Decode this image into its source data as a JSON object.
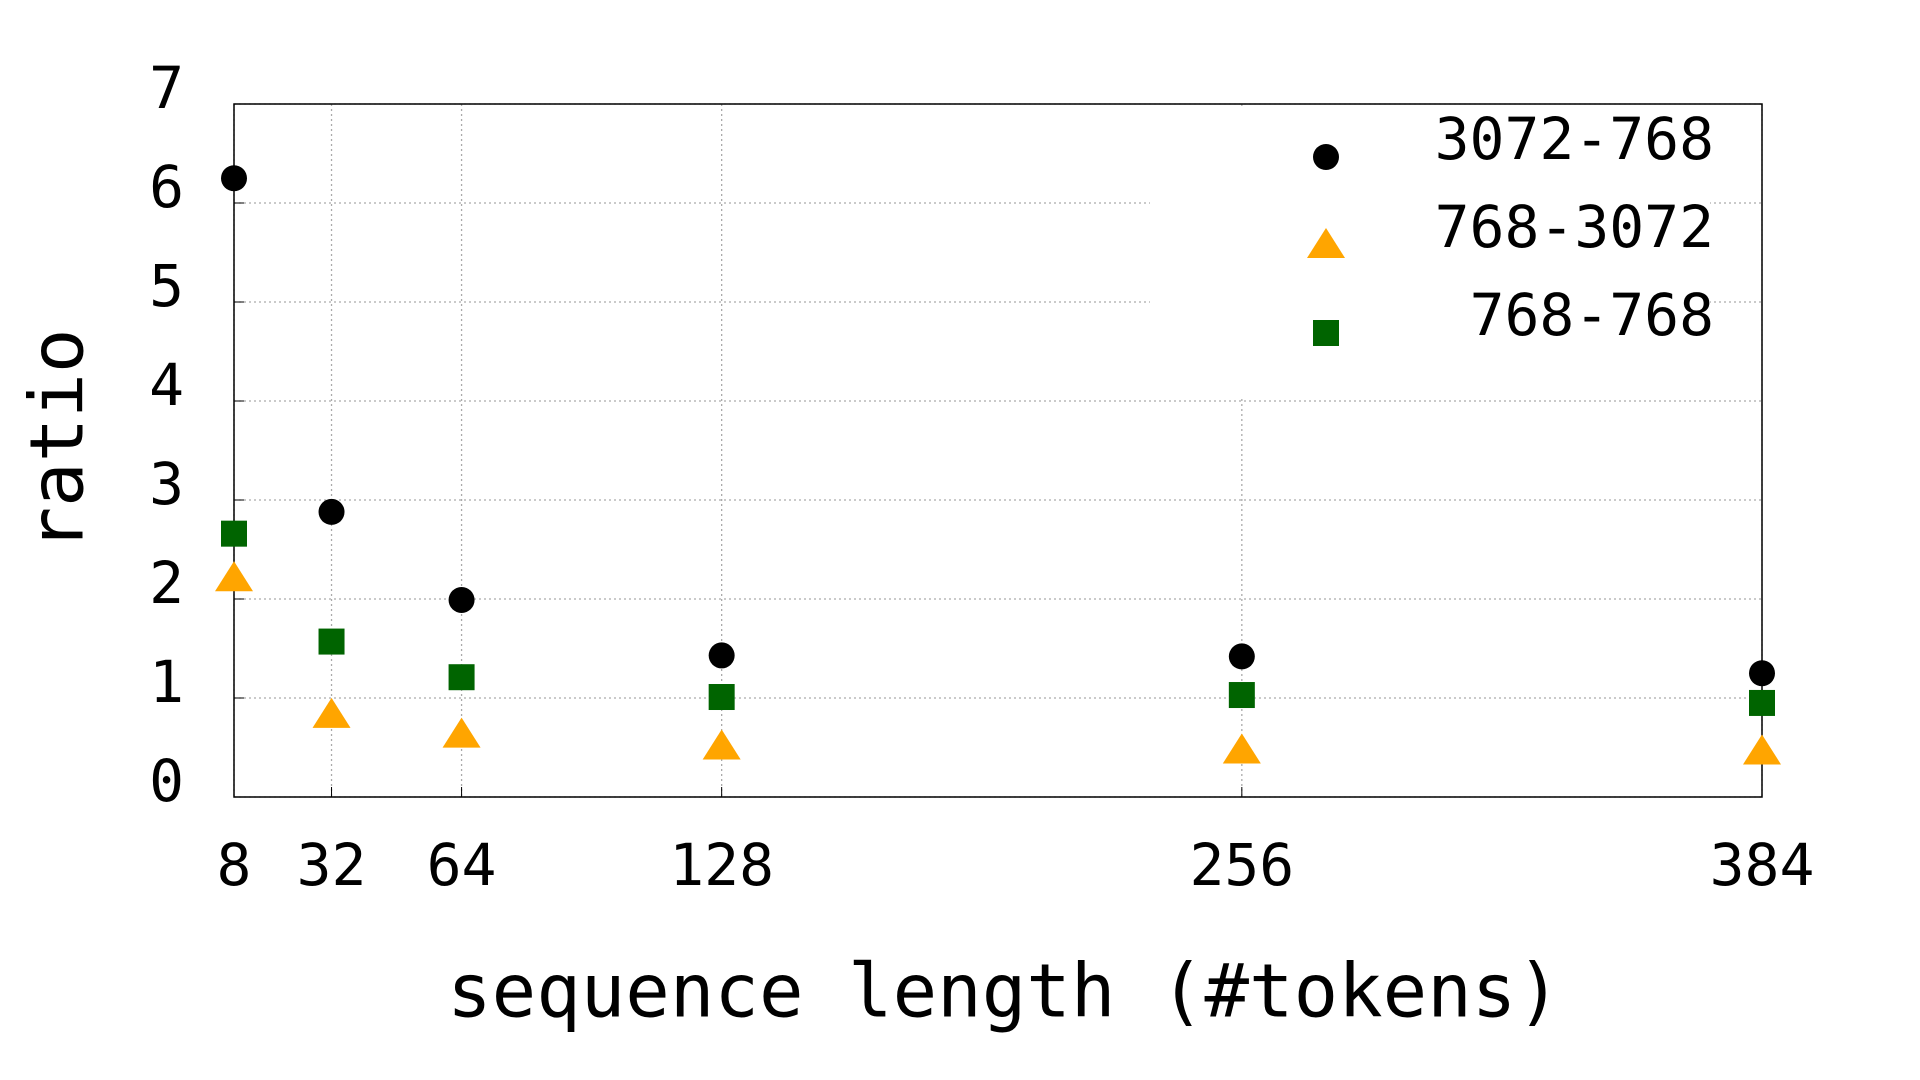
{
  "chart_data": {
    "type": "scatter",
    "x_label": "sequence length (#tokens)",
    "y_label": "ratio",
    "x": [
      8,
      32,
      64,
      128,
      256,
      384
    ],
    "series": [
      {
        "name": "3072-768",
        "color": "#000000",
        "marker": "circle",
        "values": [
          6.25,
          2.88,
          1.99,
          1.43,
          1.42,
          1.25
        ]
      },
      {
        "name": "768-3072",
        "color": "#ffa500",
        "marker": "triangle",
        "values": [
          2.21,
          0.83,
          0.63,
          0.51,
          0.47,
          0.46
        ]
      },
      {
        "name": "768-768",
        "color": "#006400",
        "marker": "square",
        "values": [
          2.66,
          1.57,
          1.21,
          1.01,
          1.03,
          0.95
        ]
      }
    ],
    "xlim": [
      8,
      384
    ],
    "xticks": [
      8,
      32,
      64,
      128,
      256,
      384
    ],
    "ylim": [
      0,
      7
    ],
    "yticks": [
      0,
      1,
      2,
      3,
      4,
      5,
      6,
      7
    ],
    "grid": true,
    "legend": "top-right"
  }
}
